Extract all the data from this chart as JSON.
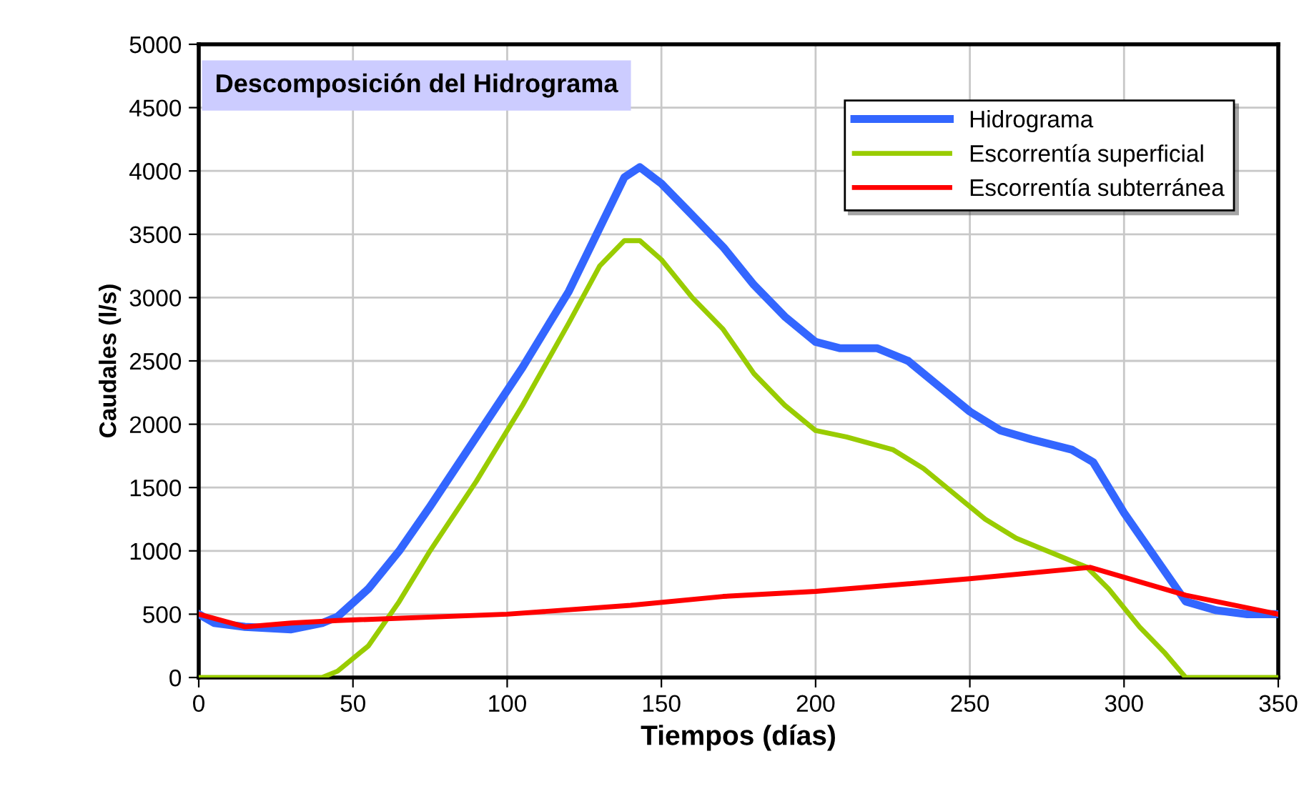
{
  "chart_data": {
    "type": "line",
    "title": "Descomposición del Hidrograma",
    "xlabel": "Tiempos (días)",
    "ylabel": "Caudales (l/s)",
    "xlim": [
      0,
      350
    ],
    "xticks": [
      0,
      50,
      100,
      150,
      200,
      250,
      300,
      350
    ],
    "ylim": [
      0,
      5000
    ],
    "yticks": [
      0,
      500,
      1000,
      1500,
      2000,
      2500,
      3000,
      3500,
      4000,
      4500,
      5000
    ],
    "grid": true,
    "legend": "top right",
    "line_style": "solid",
    "marker": "none",
    "series": [
      {
        "name": "Hidrograma",
        "color": "#3366ff",
        "x": [
          0,
          5,
          15,
          30,
          40,
          45,
          55,
          65,
          75,
          90,
          105,
          120,
          130,
          138,
          143,
          150,
          160,
          170,
          180,
          190,
          200,
          208,
          220,
          230,
          240,
          250,
          260,
          270,
          283,
          290,
          300,
          310,
          320,
          330,
          340,
          350
        ],
        "values": [
          500,
          430,
          400,
          380,
          430,
          480,
          700,
          1000,
          1350,
          1900,
          2450,
          3050,
          3550,
          3950,
          4030,
          3900,
          3650,
          3400,
          3100,
          2850,
          2650,
          2600,
          2600,
          2500,
          2300,
          2100,
          1950,
          1880,
          1800,
          1700,
          1300,
          950,
          600,
          530,
          500,
          500
        ]
      },
      {
        "name": "Escorrentía superficial",
        "color": "#99cc00",
        "x": [
          0,
          40,
          45,
          55,
          65,
          75,
          90,
          105,
          120,
          130,
          138,
          143,
          150,
          160,
          170,
          180,
          190,
          200,
          210,
          225,
          235,
          245,
          255,
          265,
          275,
          288,
          295,
          305,
          313,
          320,
          350
        ],
        "values": [
          0,
          0,
          50,
          250,
          600,
          1000,
          1550,
          2150,
          2800,
          3250,
          3450,
          3450,
          3300,
          3000,
          2750,
          2400,
          2150,
          1950,
          1900,
          1800,
          1650,
          1450,
          1250,
          1100,
          1000,
          870,
          700,
          400,
          200,
          0,
          0
        ]
      },
      {
        "name": "Escorrentía subterránea",
        "color": "#ff0000",
        "x": [
          0,
          15,
          30,
          45,
          100,
          140,
          170,
          200,
          250,
          289,
          320,
          350
        ],
        "values": [
          500,
          400,
          430,
          450,
          500,
          570,
          640,
          680,
          780,
          870,
          650,
          500
        ]
      }
    ]
  }
}
